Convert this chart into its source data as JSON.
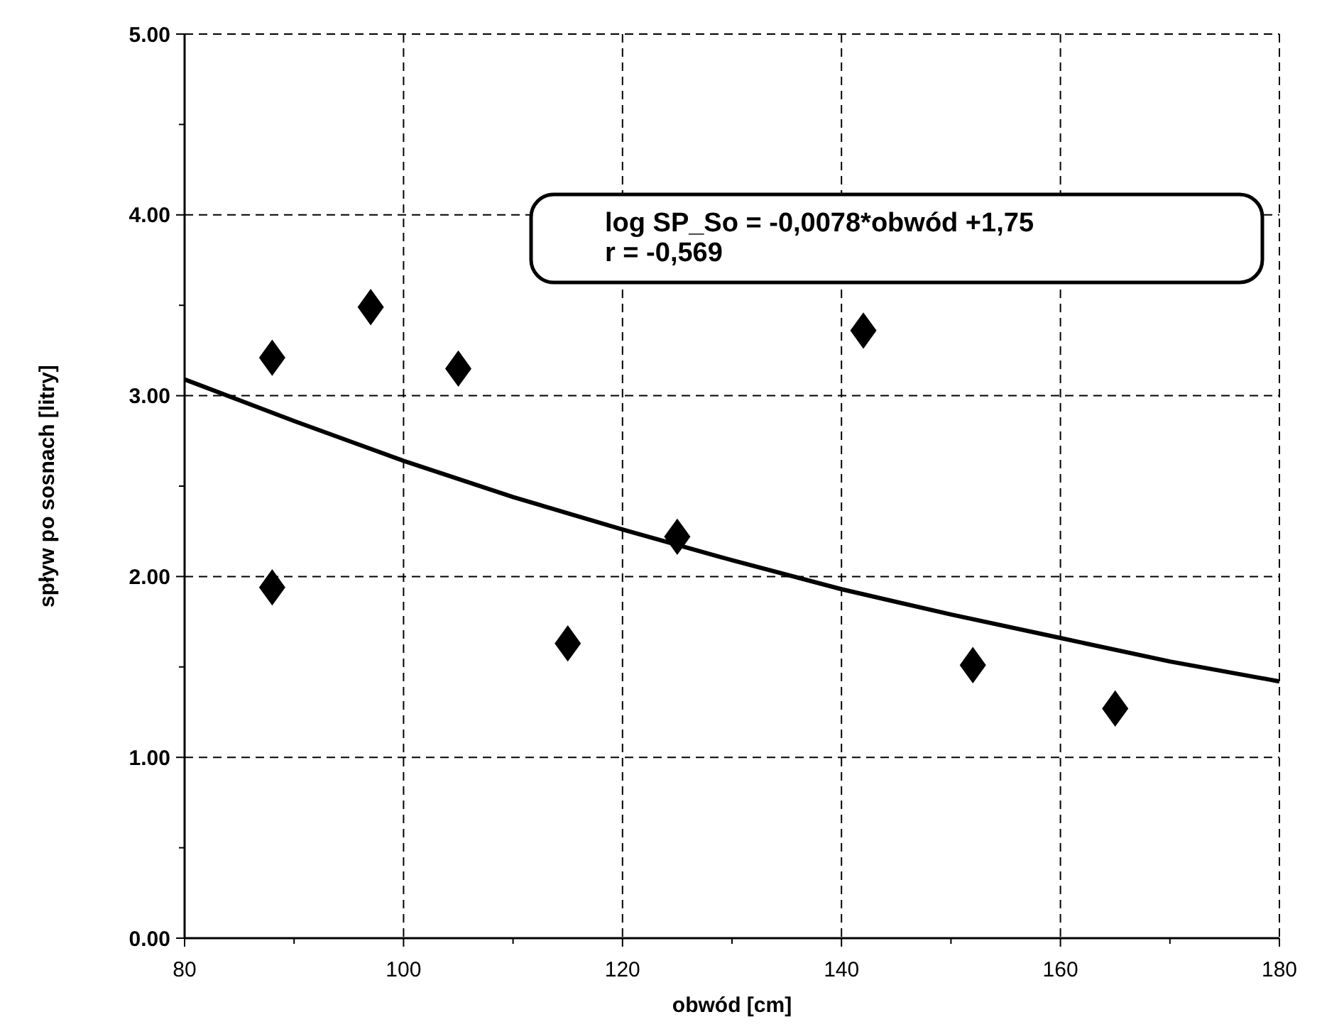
{
  "chart_data": {
    "type": "scatter",
    "xlabel": "obwód [cm]",
    "ylabel": "spływ po sosnach [litry]",
    "xlim": [
      80,
      180
    ],
    "ylim": [
      0,
      5
    ],
    "xticks": [
      80,
      {
        "value": 90,
        "label": null
      },
      100,
      {
        "value": 110,
        "label": null
      },
      120,
      {
        "value": 130,
        "label": null
      },
      140,
      {
        "value": 150,
        "label": null
      },
      160,
      {
        "value": 170,
        "label": null
      },
      180
    ],
    "yticks": [
      {
        "value": 0,
        "label": "0.00"
      },
      {
        "value": 0.5,
        "label": null
      },
      {
        "value": 1,
        "label": "1.00"
      },
      {
        "value": 1.5,
        "label": null
      },
      {
        "value": 2,
        "label": "2.00"
      },
      {
        "value": 2.5,
        "label": null
      },
      {
        "value": 3,
        "label": "3.00"
      },
      {
        "value": 3.5,
        "label": null
      },
      {
        "value": 4,
        "label": "4.00"
      },
      {
        "value": 4.5,
        "label": null
      },
      {
        "value": 5,
        "label": "5.00"
      }
    ],
    "grid": true,
    "marker": "diamond",
    "annotations": [
      "log SP_So = -0,0078*obwód +1,75",
      "r = -0,569"
    ],
    "series": [
      {
        "color": "#000000",
        "x": [
          88,
          88,
          97,
          105,
          115,
          125,
          142,
          152,
          165
        ],
        "values": [
          3.21,
          1.94,
          3.49,
          3.15,
          1.63,
          2.22,
          3.36,
          1.51,
          1.27
        ]
      },
      {
        "type": "line",
        "color": "#000000",
        "marker": "none",
        "x": [
          80,
          90,
          100,
          110,
          120,
          130,
          140,
          150,
          160,
          170,
          180
        ],
        "values": [
          3.09,
          2.86,
          2.64,
          2.44,
          2.26,
          2.09,
          1.93,
          1.79,
          1.66,
          1.53,
          1.42
        ]
      }
    ]
  }
}
